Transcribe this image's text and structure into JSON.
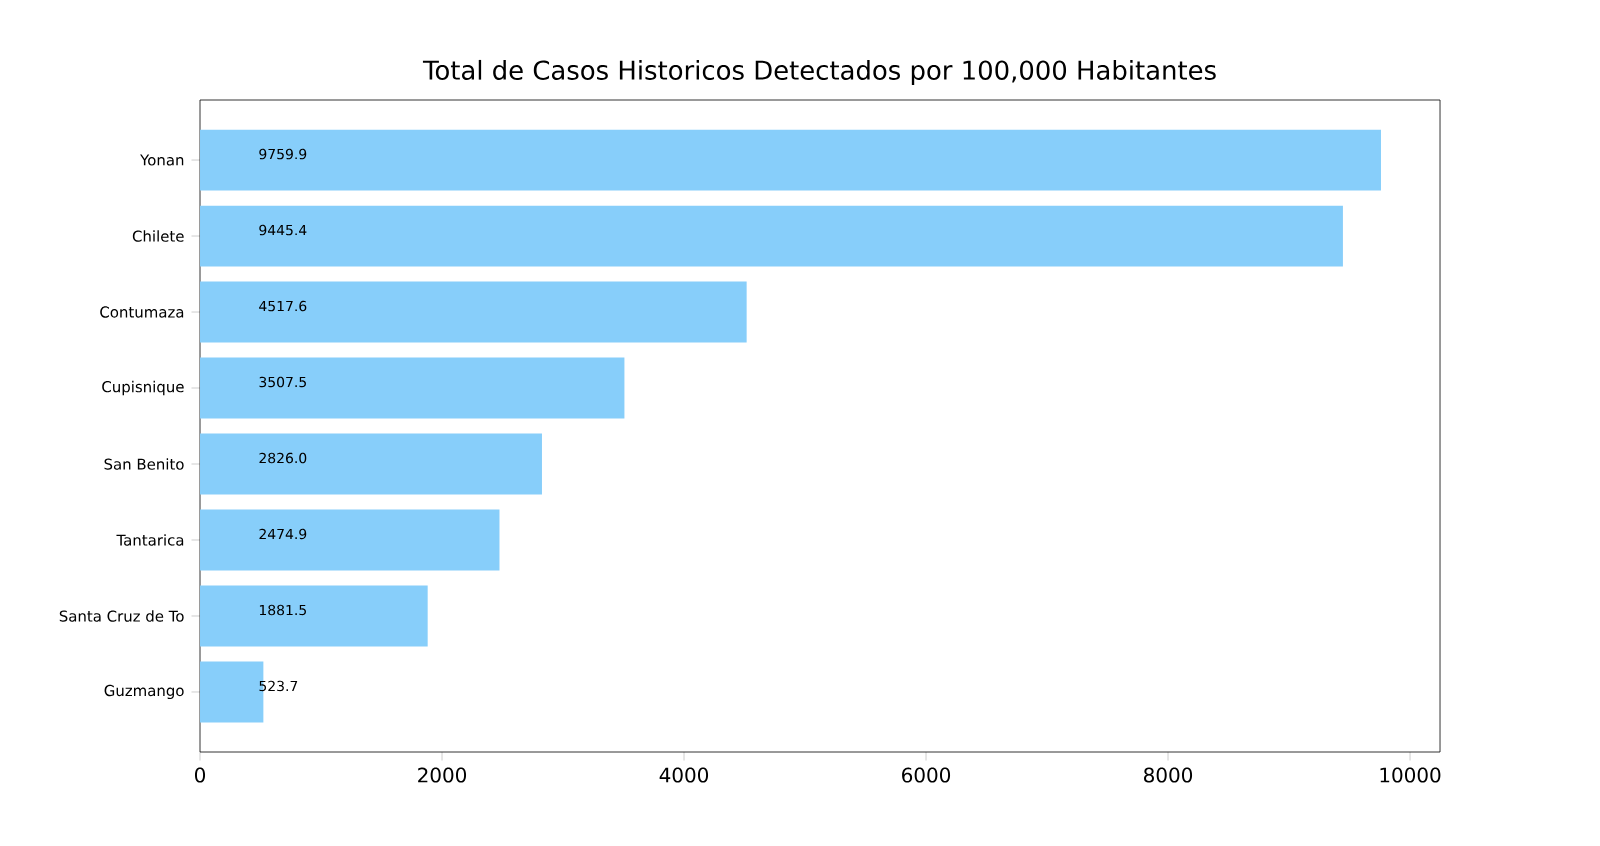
{
  "chart_data": {
    "type": "bar",
    "orientation": "horizontal",
    "title": "Total de Casos Historicos Detectados por 100,000 Habitantes",
    "categories": [
      "Yonan",
      "Chilete",
      "Contumaza",
      "Cupisnique",
      "San Benito",
      "Tantarica",
      "Santa Cruz de To",
      "Guzmango"
    ],
    "values": [
      9759.9,
      9445.4,
      4517.6,
      3507.5,
      2826,
      2474.9,
      1881.5,
      523.7
    ],
    "value_labels": [
      "9759.9",
      "9445.4",
      "4517.6",
      "3507.5",
      "2826.0",
      "2474.9",
      "1881.5",
      "523.7"
    ],
    "color": "#87cefa",
    "xlim": [
      0,
      10247.9
    ],
    "xticks": [
      0,
      2000,
      4000,
      6000,
      8000,
      10000
    ]
  }
}
